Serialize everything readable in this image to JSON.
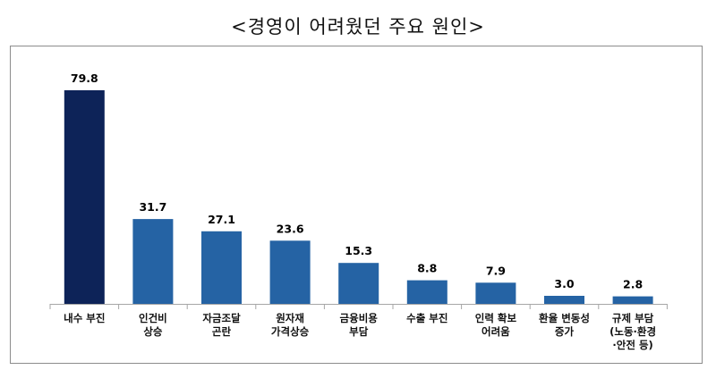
{
  "title": "<경영이 어려웠던 주요 원인>",
  "chart_data": {
    "type": "bar",
    "title": "<경영이 어려웠던 주요 원인>",
    "xlabel": "",
    "ylabel": "",
    "ylim": [
      0,
      80
    ],
    "grid": false,
    "categories": [
      [
        "내수 부진"
      ],
      [
        "인건비",
        "상승"
      ],
      [
        "자금조달",
        "곤란"
      ],
      [
        "원자재",
        "가격상승"
      ],
      [
        "금융비용",
        "부담"
      ],
      [
        "수출 부진"
      ],
      [
        "인력 확보",
        "어려움"
      ],
      [
        "환율 변동성",
        "증가"
      ],
      [
        "규제 부담",
        "(노동·환경",
        "·안전 등)"
      ]
    ],
    "values": [
      79.8,
      31.7,
      27.1,
      23.6,
      15.3,
      8.8,
      7.9,
      3.0,
      2.8
    ],
    "value_labels": [
      "79.8",
      "31.7",
      "27.1",
      "23.6",
      "15.3",
      "8.8",
      "7.9",
      "3.0",
      "2.8"
    ],
    "colors": {
      "highlight": "#0d2358",
      "bar": "#2563a4",
      "axis": "#a6a6a6"
    }
  }
}
